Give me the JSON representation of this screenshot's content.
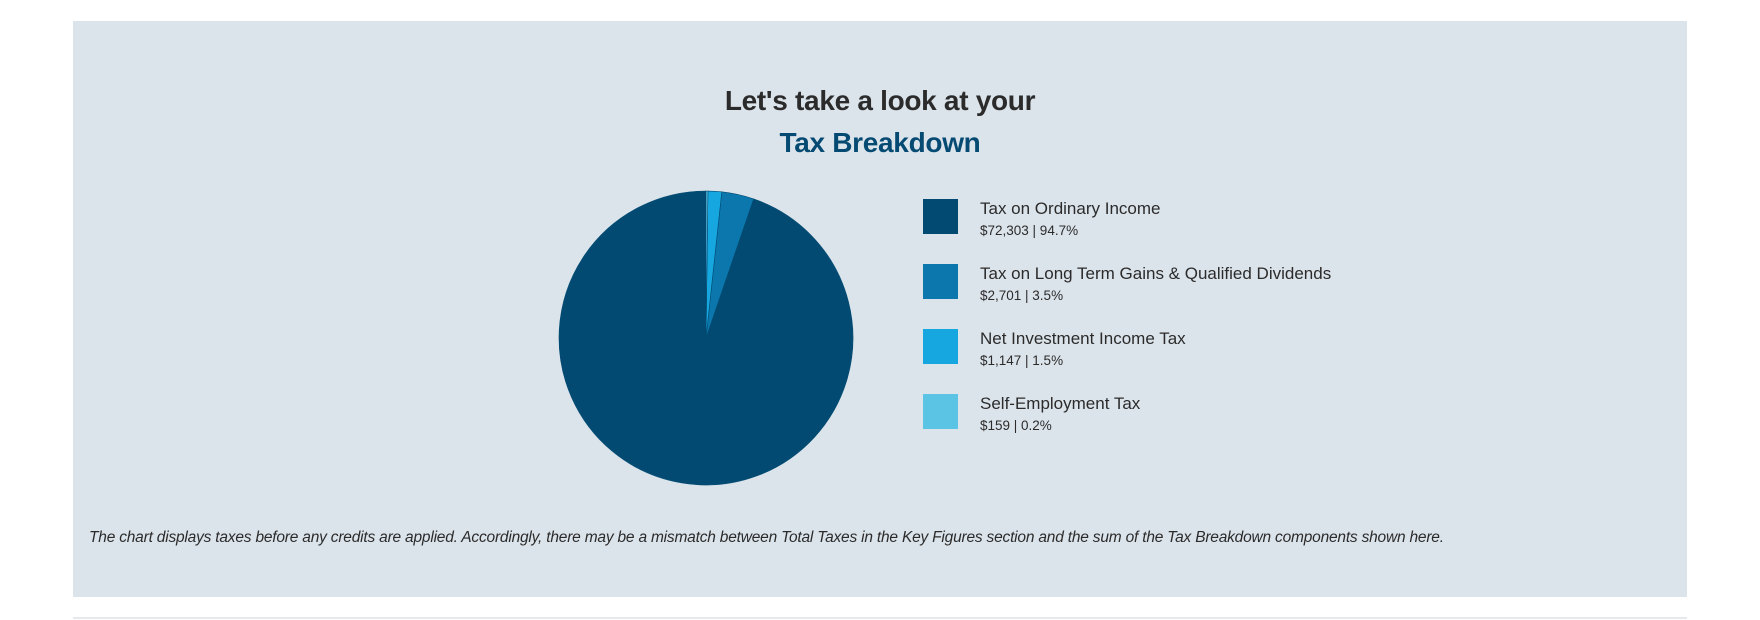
{
  "header": {
    "line1": "Let's take a look at your",
    "line2": "Tax Breakdown"
  },
  "chart_data": {
    "type": "pie",
    "categories": [
      "Tax on Ordinary Income",
      "Tax on Long Term Gains & Qualified Dividends",
      "Net Investment Income Tax",
      "Self-Employment Tax"
    ],
    "values": [
      72303,
      2701,
      1147,
      159
    ],
    "percents": [
      94.7,
      3.5,
      1.5,
      0.2
    ],
    "colors": [
      "#024a72",
      "#0b77ad",
      "#17a7e0",
      "#5bc3e4"
    ],
    "start": "top",
    "direction": "counter-clockwise"
  },
  "legend": {
    "items": [
      {
        "label": "Tax on Ordinary Income",
        "value": "$72,303 | 94.7%"
      },
      {
        "label": "Tax on Long Term Gains & Qualified Dividends",
        "value": "$2,701 | 3.5%"
      },
      {
        "label": "Net Investment Income Tax",
        "value": "$1,147 | 1.5%"
      },
      {
        "label": "Self-Employment Tax",
        "value": "$159 | 0.2%"
      }
    ]
  },
  "footnote": "The chart displays taxes before any credits are applied. Accordingly, there may be a mismatch between Total Taxes in the Key Figures section and the sum of the Tax Breakdown components shown here."
}
